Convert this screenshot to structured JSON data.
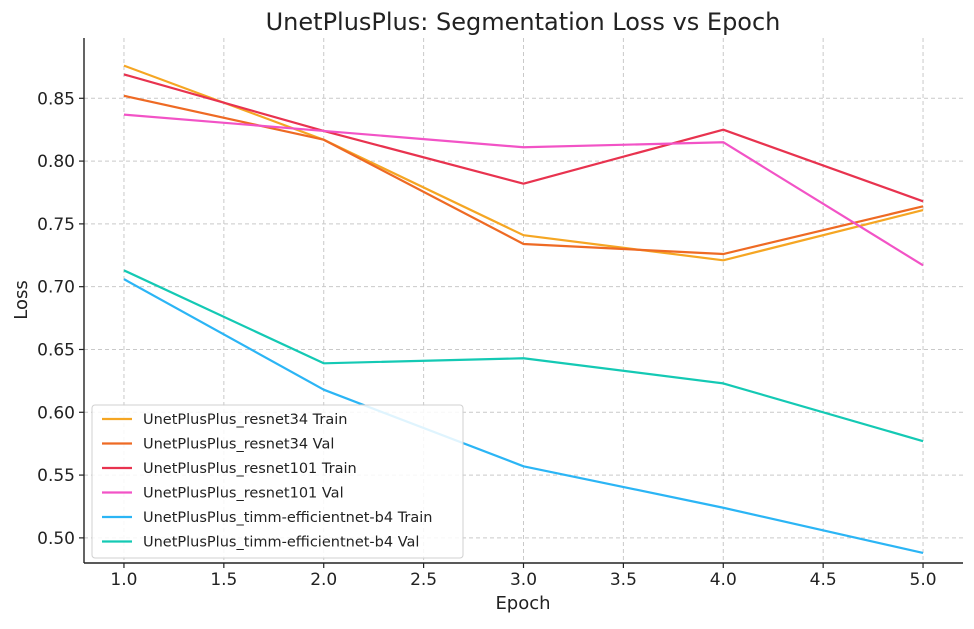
{
  "chart_data": {
    "type": "line",
    "title": "UnetPlusPlus: Segmentation Loss vs Epoch",
    "xlabel": "Epoch",
    "ylabel": "Loss",
    "x": [
      1,
      2,
      3,
      4,
      5
    ],
    "xlim": [
      0.8,
      5.2
    ],
    "ylim": [
      0.48,
      0.898
    ],
    "xticks": [
      "1.0",
      "1.5",
      "2.0",
      "2.5",
      "3.0",
      "3.5",
      "4.0",
      "4.5",
      "5.0"
    ],
    "yticks": [
      "0.50",
      "0.55",
      "0.60",
      "0.65",
      "0.70",
      "0.75",
      "0.80",
      "0.85"
    ],
    "grid": true,
    "legend_position": "bottom-left",
    "series": [
      {
        "name": "UnetPlusPlus_resnet34 Train",
        "color": "#f5a623",
        "values": [
          0.876,
          0.817,
          0.741,
          0.721,
          0.761
        ]
      },
      {
        "name": "UnetPlusPlus_resnet34 Val",
        "color": "#ee6a24",
        "values": [
          0.852,
          0.817,
          0.734,
          0.726,
          0.764
        ]
      },
      {
        "name": "UnetPlusPlus_resnet101 Train",
        "color": "#e8334f",
        "values": [
          0.869,
          0.824,
          0.782,
          0.825,
          0.768
        ]
      },
      {
        "name": "UnetPlusPlus_resnet101 Val",
        "color": "#f253c6",
        "values": [
          0.837,
          0.824,
          0.811,
          0.815,
          0.717
        ]
      },
      {
        "name": "UnetPlusPlus_timm-efficientnet-b4 Train",
        "color": "#2bb5f5",
        "values": [
          0.706,
          0.618,
          0.557,
          0.524,
          0.488
        ]
      },
      {
        "name": "UnetPlusPlus_timm-efficientnet-b4 Val",
        "color": "#14c9b4",
        "values": [
          0.713,
          0.639,
          0.643,
          0.623,
          0.577
        ]
      }
    ]
  }
}
